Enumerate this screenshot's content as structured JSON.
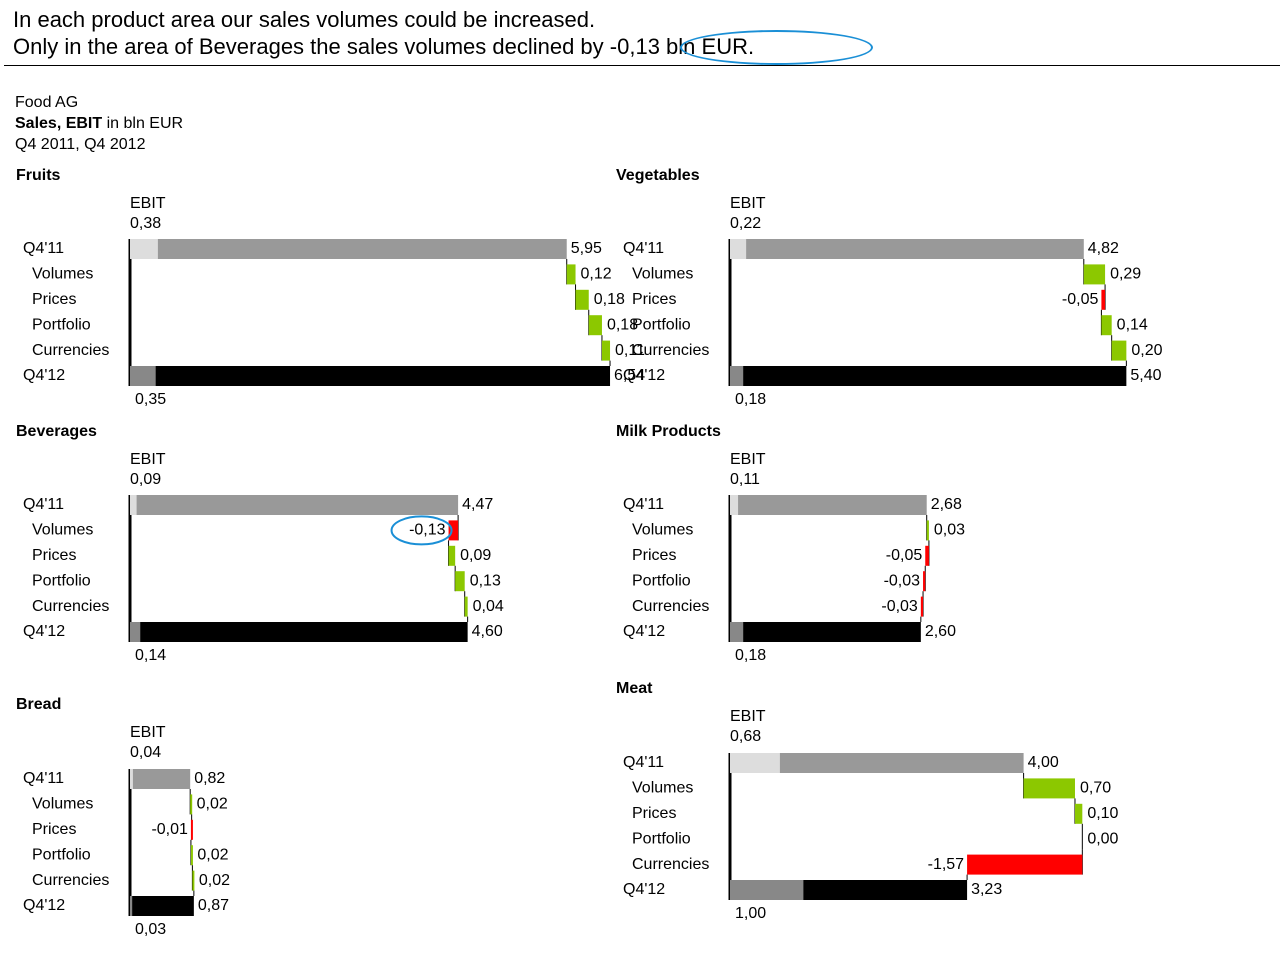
{
  "headline": {
    "line1": "In each product area our sales volumes could be increased.",
    "line2_prefix": "Only in the area of Beverages the  sales volumes declined by",
    "line2_highlight": "-0,13 bln EUR",
    "line2_suffix": "."
  },
  "meta": {
    "company": "Food AG",
    "measure_bold": "Sales, EBIT",
    "measure_unit": " in bln EUR",
    "periods": "Q4 2011, Q4 2012"
  },
  "colors": {
    "positive": "#8cc800",
    "negative": "#ff0000",
    "base_prev": "#999999",
    "base_curr": "#000000",
    "ebit_prev": "#dddddd",
    "ebit_curr": "#888888",
    "callout": "#1a8fd6"
  },
  "chart_data": [
    {
      "type": "bar",
      "title": "Fruits",
      "ebit_label": "EBIT",
      "categories": [
        "Q4'11",
        "Volumes",
        "Prices",
        "Portfolio",
        "Currencies",
        "Q4'12"
      ],
      "series": [
        {
          "values": [
            5.95,
            0.12,
            0.18,
            0.18,
            0.11,
            6.54
          ]
        }
      ],
      "value_labels": [
        "5,95",
        "0,12",
        "0,18",
        "0,18",
        "0,11",
        "6,54"
      ],
      "ebit": {
        "values": [
          0.38,
          0.35
        ],
        "labels": [
          "0,38",
          "0,35"
        ]
      }
    },
    {
      "type": "bar",
      "title": "Vegetables",
      "ebit_label": "EBIT",
      "categories": [
        "Q4'11",
        "Volumes",
        "Prices",
        "Portfolio",
        "Currencies",
        "Q4'12"
      ],
      "series": [
        {
          "values": [
            4.82,
            0.29,
            -0.05,
            0.14,
            0.2,
            5.4
          ]
        }
      ],
      "value_labels": [
        "4,82",
        "0,29",
        "-0,05",
        "0,14",
        "0,20",
        "5,40"
      ],
      "ebit": {
        "values": [
          0.22,
          0.18
        ],
        "labels": [
          "0,22",
          "0,18"
        ]
      }
    },
    {
      "type": "bar",
      "title": "Beverages",
      "ebit_label": "EBIT",
      "categories": [
        "Q4'11",
        "Volumes",
        "Prices",
        "Portfolio",
        "Currencies",
        "Q4'12"
      ],
      "series": [
        {
          "values": [
            4.47,
            -0.13,
            0.09,
            0.13,
            0.04,
            4.6
          ]
        }
      ],
      "value_labels": [
        "4,47",
        "-0,13",
        "0,09",
        "0,13",
        "0,04",
        "4,60"
      ],
      "ebit": {
        "values": [
          0.09,
          0.14
        ],
        "labels": [
          "0,09",
          "0,14"
        ]
      },
      "highlight_index": 1
    },
    {
      "type": "bar",
      "title": "Milk Products",
      "ebit_label": "EBIT",
      "categories": [
        "Q4'11",
        "Volumes",
        "Prices",
        "Portfolio",
        "Currencies",
        "Q4'12"
      ],
      "series": [
        {
          "values": [
            2.68,
            0.03,
            -0.05,
            -0.03,
            -0.03,
            2.6
          ]
        }
      ],
      "value_labels": [
        "2,68",
        "0,03",
        "-0,05",
        "-0,03",
        "-0,03",
        "2,60"
      ],
      "ebit": {
        "values": [
          0.11,
          0.18
        ],
        "labels": [
          "0,11",
          "0,18"
        ]
      }
    },
    {
      "type": "bar",
      "title": "Bread",
      "ebit_label": "EBIT",
      "categories": [
        "Q4'11",
        "Volumes",
        "Prices",
        "Portfolio",
        "Currencies",
        "Q4'12"
      ],
      "series": [
        {
          "values": [
            0.82,
            0.02,
            -0.01,
            0.02,
            0.02,
            0.87
          ]
        }
      ],
      "value_labels": [
        "0,82",
        "0,02",
        "-0,01",
        "0,02",
        "0,02",
        "0,87"
      ],
      "ebit": {
        "values": [
          0.04,
          0.03
        ],
        "labels": [
          "0,04",
          "0,03"
        ]
      }
    },
    {
      "type": "bar",
      "title": "Meat",
      "ebit_label": "EBIT",
      "categories": [
        "Q4'11",
        "Volumes",
        "Prices",
        "Portfolio",
        "Currencies",
        "Q4'12"
      ],
      "series": [
        {
          "values": [
            4.0,
            0.7,
            0.1,
            0.0,
            -1.57,
            3.23
          ]
        }
      ],
      "value_labels": [
        "4,00",
        "0,70",
        "0,10",
        "0,00",
        "-1,57",
        "3,23"
      ],
      "ebit": {
        "values": [
          0.68,
          1.0
        ],
        "labels": [
          "0,68",
          "1,00"
        ]
      }
    }
  ]
}
